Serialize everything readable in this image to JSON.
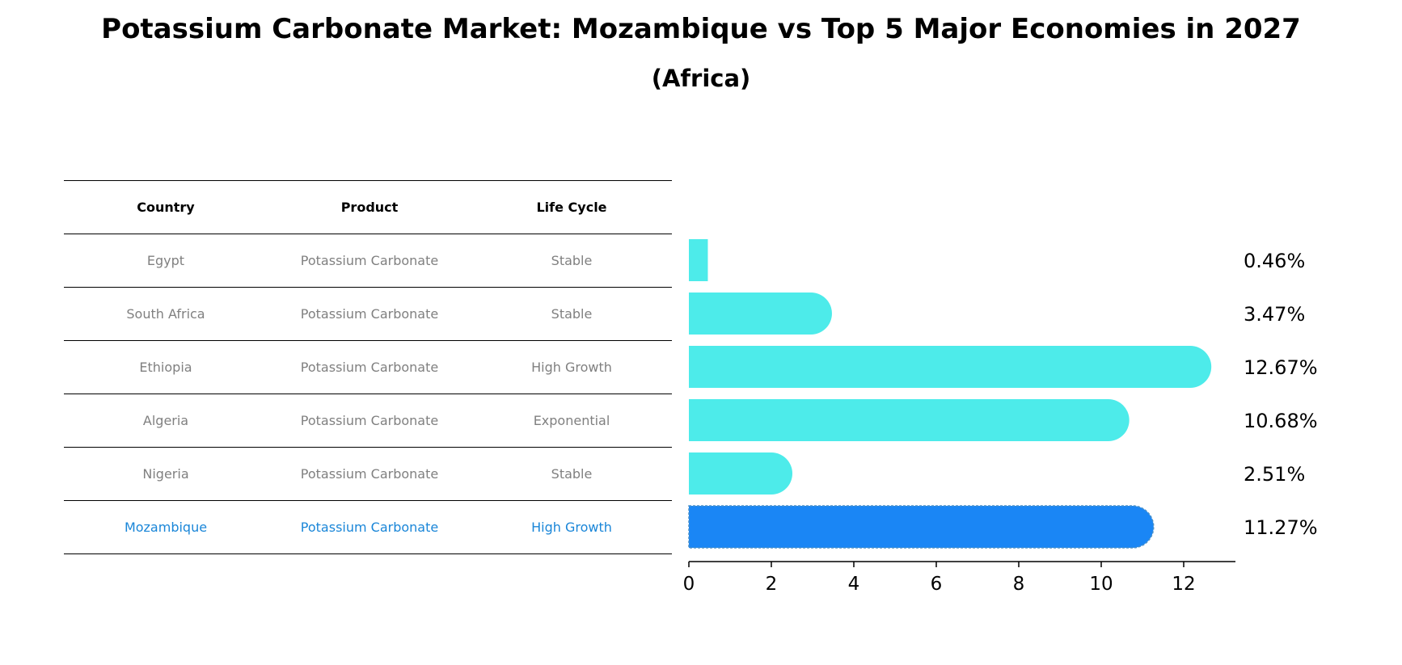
{
  "title": "Potassium Carbonate Market: Mozambique vs Top 5 Major Economies in 2027",
  "subtitle": "(Africa)",
  "table": {
    "headers": [
      "Country",
      "Product",
      "Life Cycle"
    ],
    "rows": [
      {
        "country": "Egypt",
        "product": "Potassium Carbonate",
        "life_cycle": "Stable"
      },
      {
        "country": "South Africa",
        "product": "Potassium Carbonate",
        "life_cycle": "Stable"
      },
      {
        "country": "Ethiopia",
        "product": "Potassium Carbonate",
        "life_cycle": "High Growth"
      },
      {
        "country": "Algeria",
        "product": "Potassium Carbonate",
        "life_cycle": "Exponential"
      },
      {
        "country": "Nigeria",
        "product": "Potassium Carbonate",
        "life_cycle": "Stable"
      },
      {
        "country": "Mozambique",
        "product": "Potassium Carbonate",
        "life_cycle": "High Growth"
      }
    ]
  },
  "chart_data": {
    "type": "bar",
    "orientation": "horizontal",
    "categories": [
      "Egypt",
      "South Africa",
      "Ethiopia",
      "Algeria",
      "Nigeria",
      "Mozambique"
    ],
    "values": [
      0.46,
      3.47,
      12.67,
      10.68,
      2.51,
      11.27
    ],
    "value_labels": [
      "0.46%",
      "3.47%",
      "12.67%",
      "10.68%",
      "2.51%",
      "11.27%"
    ],
    "highlight": "Mozambique",
    "xlim": [
      0,
      13.3
    ],
    "xticks": [
      0,
      2,
      4,
      6,
      8,
      10,
      12
    ],
    "xlabel": "",
    "ylabel": "",
    "colors": {
      "default": "#4debea",
      "highlight": "#1a86f5"
    }
  }
}
